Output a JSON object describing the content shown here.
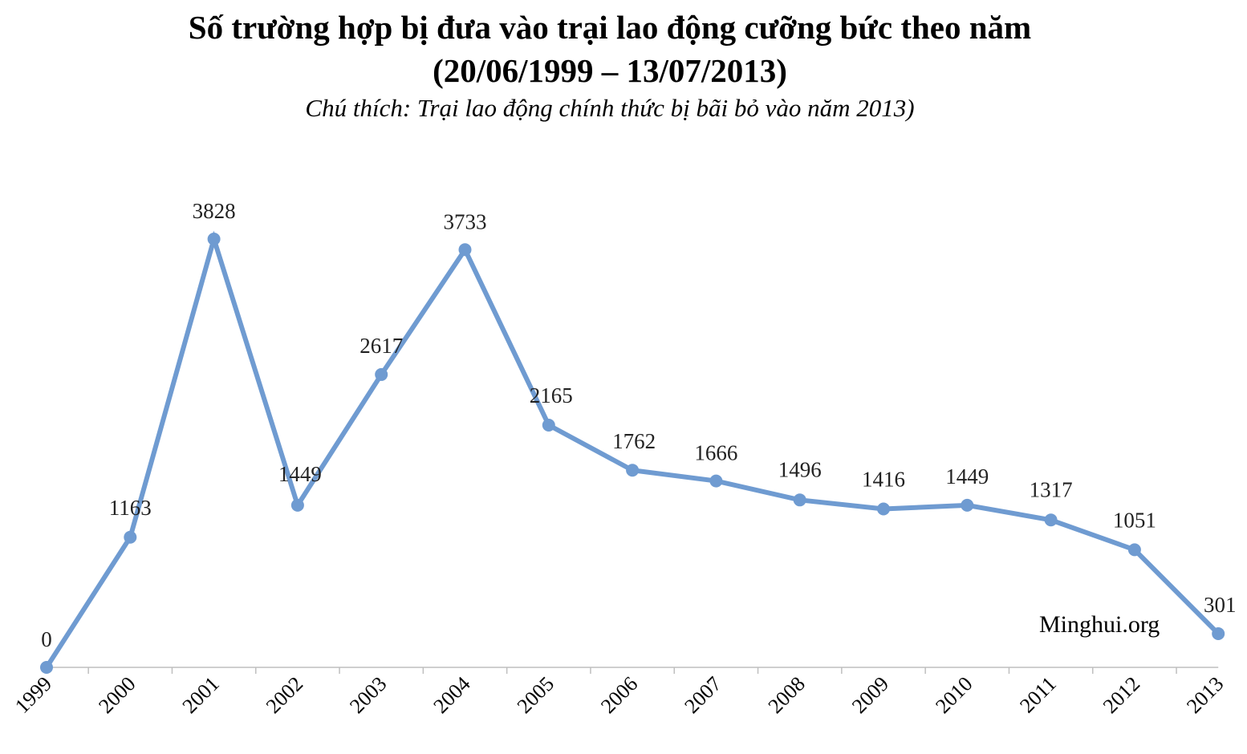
{
  "header": {
    "title_line1": "Số trường hợp bị đưa vào trại lao động cưỡng bức theo năm",
    "title_line2": "(20/06/1999 – 13/07/2013)",
    "subtitle": "Chú thích: Trại lao động chính thức bị bãi bỏ vào năm 2013)"
  },
  "watermark": "Minghui.org",
  "colors": {
    "line": "#6f9bd1",
    "axis": "#bfbfbf",
    "background": "#ffffff"
  },
  "chart_data": {
    "type": "line",
    "title": "Số trường hợp bị đưa vào trại lao động cưỡng bức theo năm",
    "subtitle": "(20/06/1999 – 13/07/2013)",
    "xlabel": "",
    "ylabel": "",
    "categories": [
      "1999",
      "2000",
      "2001",
      "2002",
      "2003",
      "2004",
      "2005",
      "2006",
      "2007",
      "2008",
      "2009",
      "2010",
      "2011",
      "2012",
      "2013"
    ],
    "values": [
      0,
      1163,
      3828,
      1449,
      2617,
      3733,
      2165,
      1762,
      1666,
      1496,
      1416,
      1449,
      1317,
      1051,
      301
    ],
    "data_labels": [
      "0",
      "1163",
      "3828",
      "1449",
      "2617",
      "3733",
      "2165",
      "1762",
      "1666",
      "1496",
      "1416",
      "1449",
      "1317",
      "1051",
      "301"
    ],
    "ylim": [
      0,
      3828
    ],
    "grid": false,
    "legend": "none"
  }
}
